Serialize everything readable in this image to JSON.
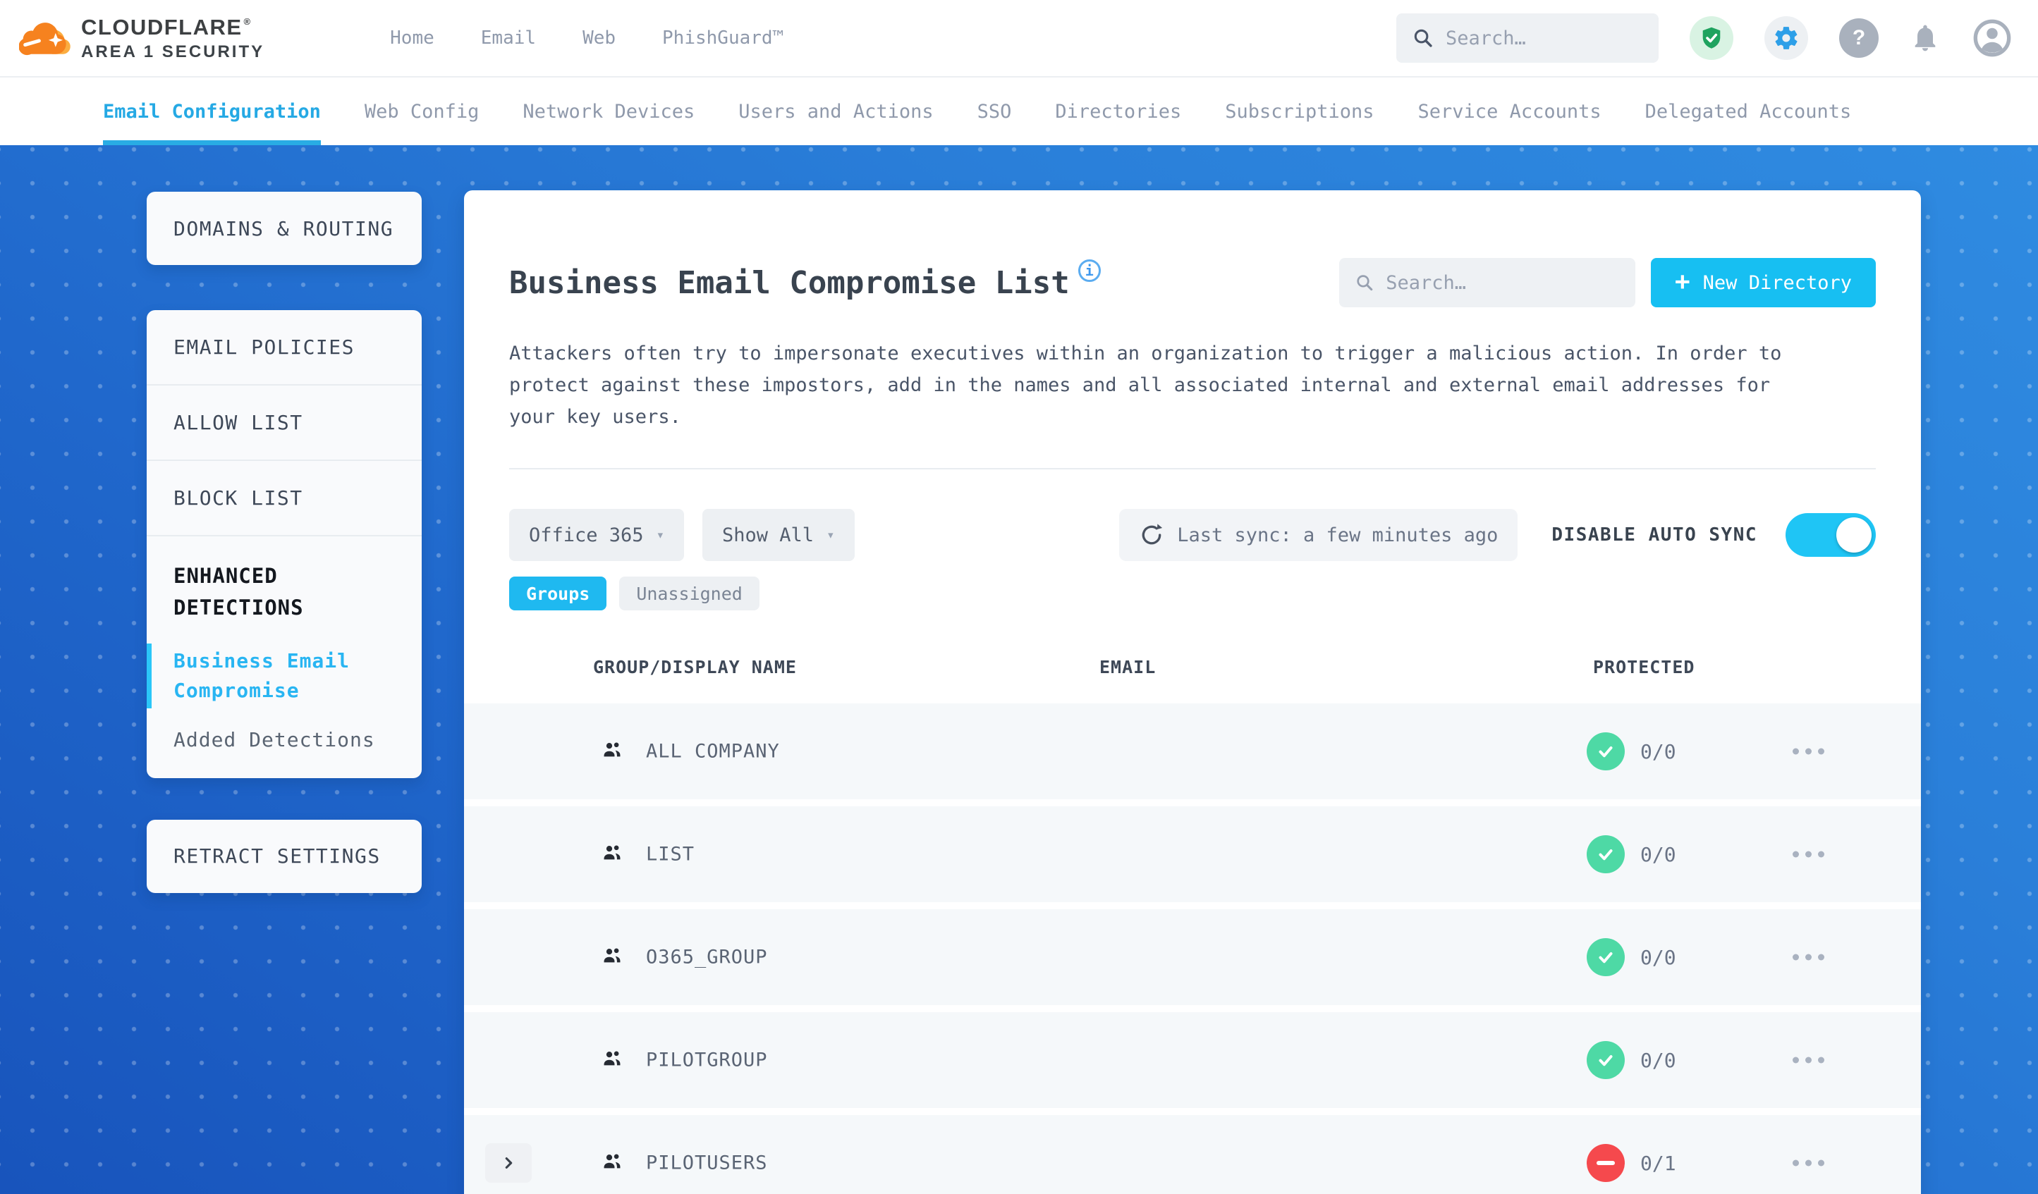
{
  "colors": {
    "accent_cyan": "#17BFF2",
    "active_tab_cyan": "#25A9E4",
    "success_green": "#4ED9A5",
    "error_red": "#F5494D",
    "brand_orange": "#F6821F",
    "canvas_blue_light": "#2F8BE1",
    "canvas_blue_dark": "#1854BC"
  },
  "header": {
    "brand": "CLOUDFLARE",
    "brand_mark": "®",
    "brand_sub": "AREA 1 SECURITY",
    "nav": [
      "Home",
      "Email",
      "Web",
      "PhishGuard™"
    ],
    "search_placeholder": "Search…",
    "icons": [
      "security-shield-check",
      "settings-gear",
      "help-question",
      "notifications-bell",
      "account-avatar"
    ]
  },
  "tabbar": {
    "tabs": [
      {
        "label": "Email Configuration",
        "active": true
      },
      {
        "label": "Web Config",
        "active": false
      },
      {
        "label": "Network Devices",
        "active": false
      },
      {
        "label": "Users and Actions",
        "active": false
      },
      {
        "label": "SSO",
        "active": false
      },
      {
        "label": "Directories",
        "active": false
      },
      {
        "label": "Subscriptions",
        "active": false
      },
      {
        "label": "Service Accounts",
        "active": false
      },
      {
        "label": "Delegated Accounts",
        "active": false
      }
    ]
  },
  "sidebar": {
    "domains_card": "DOMAINS & ROUTING",
    "policies_items": [
      "EMAIL POLICIES",
      "ALLOW LIST",
      "BLOCK LIST"
    ],
    "enhanced_title": "ENHANCED DETECTIONS",
    "enhanced_items": [
      {
        "label": "Business Email Compromise",
        "active": true
      },
      {
        "label": "Added Detections",
        "active": false
      }
    ],
    "retract_card": "RETRACT SETTINGS"
  },
  "main": {
    "title": "Business Email Compromise List",
    "info": "i",
    "search_placeholder": "Search…",
    "new_directory": {
      "plus": "+",
      "label": "New Directory"
    },
    "description": "Attackers often try to impersonate executives within an organization to trigger a malicious action. In order to protect against these impostors, add in the names and all associated internal and external email addresses for your key users.",
    "filters": {
      "directory": "Office 365",
      "show": "Show All",
      "caret": "▾"
    },
    "sync": {
      "last_sync": "Last sync: a few minutes ago",
      "auto_label": "DISABLE AUTO SYNC",
      "enabled": true
    },
    "view_tabs": [
      {
        "label": "Groups",
        "active": true
      },
      {
        "label": "Unassigned",
        "active": false
      }
    ],
    "table": {
      "columns": [
        "GROUP/DISPLAY NAME",
        "EMAIL",
        "PROTECTED"
      ],
      "rows": [
        {
          "name": "ALL COMPANY",
          "email": "",
          "protected": "0/0",
          "status": "protected",
          "expandable": false
        },
        {
          "name": "LIST",
          "email": "",
          "protected": "0/0",
          "status": "protected",
          "expandable": false
        },
        {
          "name": "O365_GROUP",
          "email": "",
          "protected": "0/0",
          "status": "protected",
          "expandable": false
        },
        {
          "name": "PILOTGROUP",
          "email": "",
          "protected": "0/0",
          "status": "protected",
          "expandable": false
        },
        {
          "name": "PILOTUSERS",
          "email": "",
          "protected": "0/1",
          "status": "unprotected",
          "expandable": true
        }
      ]
    }
  }
}
